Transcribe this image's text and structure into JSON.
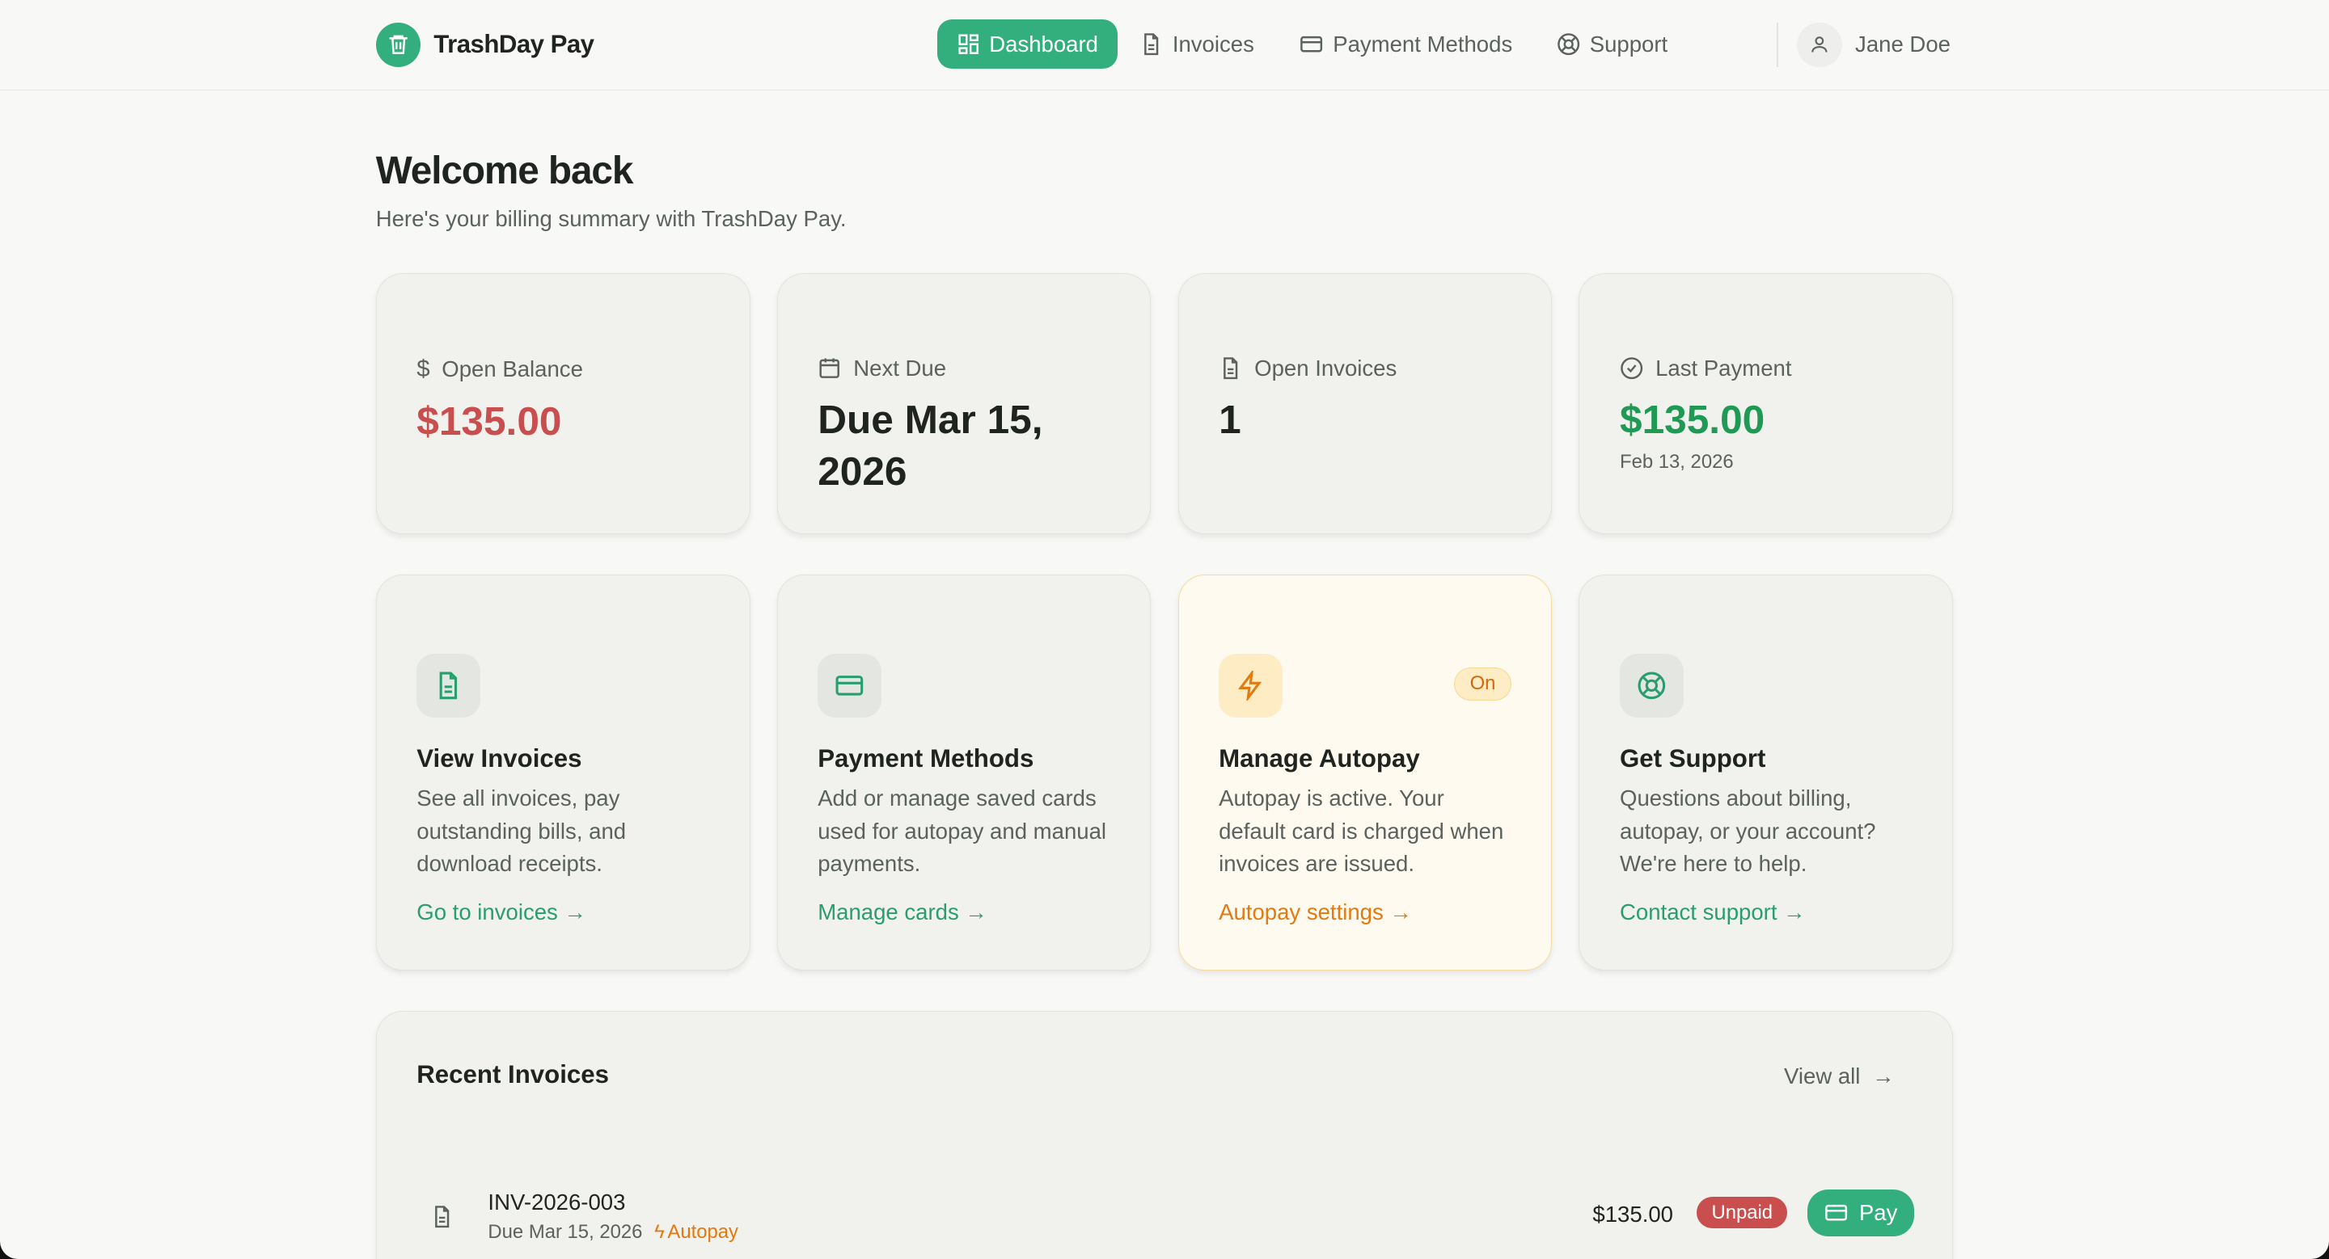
{
  "app": {
    "name": "TrashDay Pay",
    "logo_icon": "trash-icon"
  },
  "nav": {
    "items": [
      {
        "label": "Dashboard",
        "icon": "grid-icon",
        "active": true
      },
      {
        "label": "Invoices",
        "icon": "file-icon"
      },
      {
        "label": "Payment Methods",
        "icon": "credit-card-icon"
      },
      {
        "label": "Support",
        "icon": "life-buoy-icon"
      }
    ],
    "user": "Jane Doe"
  },
  "page": {
    "title": "Welcome back",
    "subtitle": "Here's your billing summary with TrashDay Pay."
  },
  "stats": [
    {
      "label": "Open Balance",
      "value": "$135.00",
      "color": "#c94f4f",
      "icon": "dollar-icon"
    },
    {
      "label": "Next Due",
      "value": "Due Mar 15, 2026",
      "icon": "calendar-icon"
    },
    {
      "label": "Open Invoices",
      "value": "1",
      "icon": "file-icon"
    },
    {
      "label": "Last Payment",
      "value": "$135.00",
      "sub": "Feb 13, 2026",
      "color": "#1f9a55",
      "icon": "check-circle-icon"
    }
  ],
  "actions": [
    {
      "title": "View Invoices",
      "desc": "See all invoices, pay outstanding bills, and download receipts.",
      "link": "Go to invoices →"
    },
    {
      "title": "Payment Methods",
      "desc": "Add or manage saved cards used for autopay and manual payments.",
      "link": "Manage cards →"
    },
    {
      "title": "Manage Autopay",
      "badge": "On",
      "desc": "Autopay is active. Your default card is charged when invoices are issued.",
      "link": "Autopay settings →"
    },
    {
      "title": "Get Support",
      "desc": "Questions about billing, autopay, or your account? We're here to help.",
      "link": "Contact support →"
    }
  ],
  "recent": {
    "title": "Recent Invoices",
    "view_all": "View all",
    "rows": [
      {
        "id": "INV-2026-003",
        "due": "Due Mar 15, 2026",
        "autopay": "Autopay",
        "amount": "$135.00",
        "status": "Unpaid",
        "pay": "Pay"
      }
    ]
  },
  "colors": {
    "accent": "#33ae7d",
    "danger": "#c94f4f",
    "warning": "#e27a10"
  }
}
